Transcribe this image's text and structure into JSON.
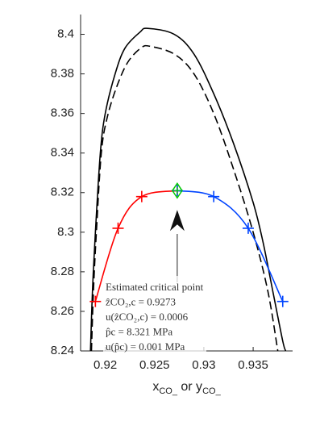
{
  "chart_data": {
    "type": "line",
    "xlabel": [
      "x",
      "CO_",
      " or y",
      "CO_"
    ],
    "xlim": [
      0.9175,
      0.939
    ],
    "ylim": [
      8.24,
      8.41
    ],
    "xticks": [
      0.92,
      0.925,
      0.93,
      0.935
    ],
    "yticks": [
      8.24,
      8.26,
      8.28,
      8.3,
      8.32,
      8.34,
      8.36,
      8.38,
      8.4
    ],
    "series": [
      {
        "color": "#000000",
        "dash": false,
        "markers": false,
        "x": [
          0.9185,
          0.9187,
          0.919,
          0.9195,
          0.92,
          0.921,
          0.922,
          0.9235,
          0.9243,
          0.927,
          0.929,
          0.931,
          0.933,
          0.935,
          0.936,
          0.937,
          0.938,
          0.9383
        ],
        "values": [
          8.24,
          8.27,
          8.3,
          8.34,
          8.36,
          8.38,
          8.393,
          8.401,
          8.403,
          8.4,
          8.39,
          8.37,
          8.345,
          8.315,
          8.295,
          8.27,
          8.245,
          8.24
        ]
      },
      {
        "color": "#000000",
        "dash": true,
        "markers": false,
        "x": [
          0.9186,
          0.9188,
          0.9191,
          0.9196,
          0.9202,
          0.9212,
          0.9223,
          0.9236,
          0.9245,
          0.927,
          0.929,
          0.931,
          0.933,
          0.935,
          0.9365,
          0.9375
        ],
        "values": [
          8.24,
          8.27,
          8.3,
          8.34,
          8.358,
          8.374,
          8.386,
          8.393,
          8.394,
          8.39,
          8.38,
          8.36,
          8.332,
          8.3,
          8.27,
          8.24
        ]
      },
      {
        "color": "#ff0000",
        "dash": false,
        "markers": true,
        "x": [
          0.919,
          0.9213,
          0.9237,
          0.9273
        ],
        "values": [
          8.265,
          8.302,
          8.318,
          8.321
        ]
      },
      {
        "color": "#0044ff",
        "dash": false,
        "markers": true,
        "x": [
          0.9273,
          0.931,
          0.9345,
          0.938
        ],
        "values": [
          8.321,
          8.318,
          8.302,
          8.265
        ]
      }
    ],
    "critical_point": {
      "x": 0.9273,
      "y": 8.321,
      "color": "#00cc00"
    },
    "annotation": [
      "Estimated critical point",
      "ẑCO₂,c = 0.9273",
      "u(ẑCO₂,c) = 0.0006",
      "p̂c = 8.321 MPa",
      "u(p̂c) = 0.001 MPa"
    ]
  }
}
